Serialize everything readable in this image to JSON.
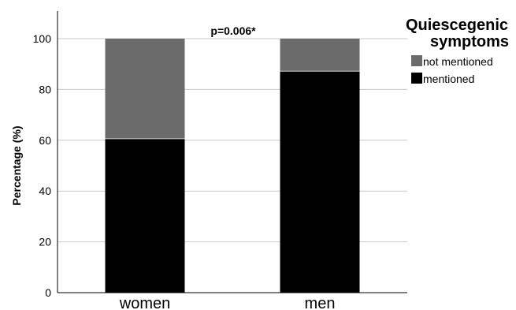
{
  "chart_data": {
    "type": "bar",
    "stacked": true,
    "categories": [
      "women",
      "men"
    ],
    "series": [
      {
        "name": "mentioned",
        "values": [
          60.6,
          87.2
        ],
        "color": "#000000"
      },
      {
        "name": "not mentioned",
        "values": [
          39.4,
          12.8
        ],
        "color": "#6b6b6b"
      }
    ],
    "xlabel": "",
    "ylabel": "Percentage (%)",
    "ylim": [
      0,
      100
    ],
    "yticks": [
      0,
      20,
      40,
      60,
      80,
      100
    ],
    "grid": "horizontal",
    "annotation": "p=0.006*",
    "legend": {
      "title_lines": [
        "Quiescegenic",
        "symptoms"
      ],
      "placement": "top-right",
      "entries": [
        {
          "label": "not mentioned",
          "color": "#6b6b6b"
        },
        {
          "label": "mentioned",
          "color": "#000000"
        }
      ]
    }
  }
}
